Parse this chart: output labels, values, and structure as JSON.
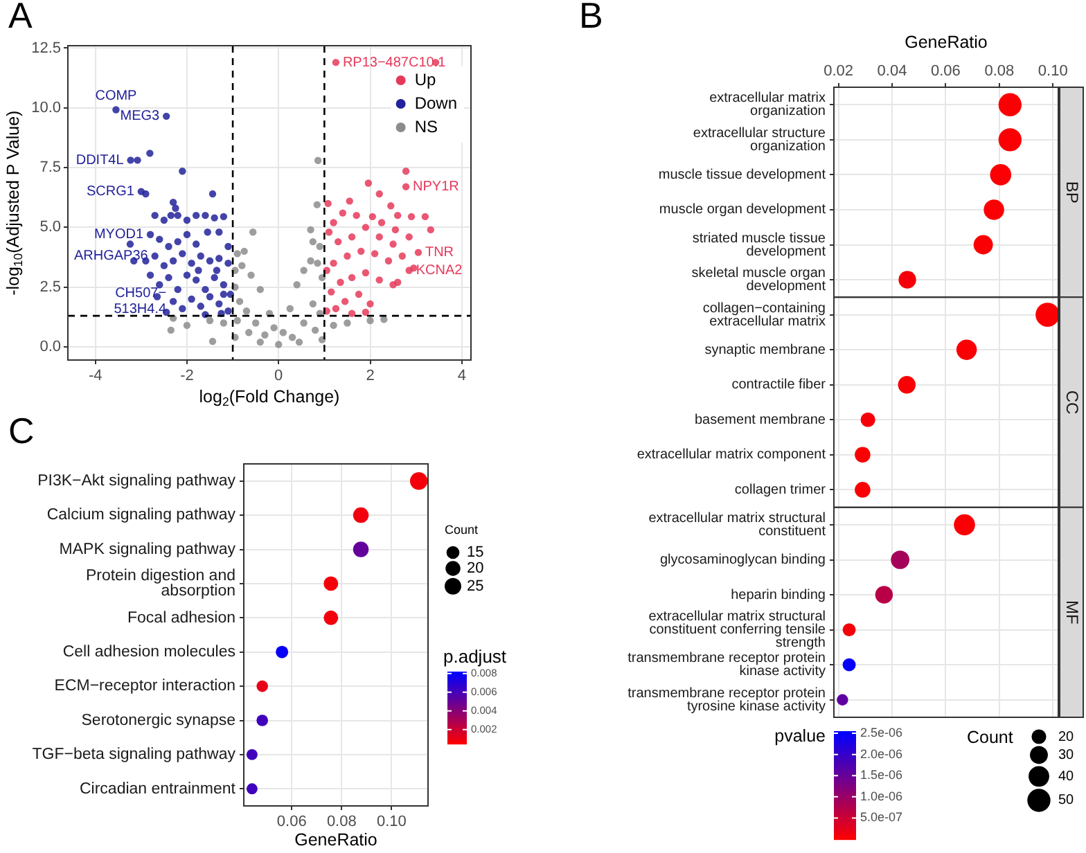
{
  "chart_data": [
    {
      "type": "scatter",
      "annotations": [
        "A",
        {
          "text": "COMP",
          "x": -3.55,
          "y": 9.92
        },
        {
          "text": "MEG3",
          "x": -2.45,
          "y": 9.65
        },
        {
          "text": "DDIT4L",
          "x": -3.23,
          "y": 7.81
        },
        {
          "text": "SCRG1",
          "x": -3.0,
          "y": 6.5
        },
        {
          "text": "MYOD1",
          "x": -2.8,
          "y": 4.7
        },
        {
          "text": "ARHGAP36",
          "x": -2.7,
          "y": 3.8
        },
        {
          "text": "CH507−513H4.4",
          "x": -2.3,
          "y": 1.9
        },
        {
          "text": "RP13−487C10.1",
          "x": 1.25,
          "y": 11.9
        },
        {
          "text": "NPY1R",
          "x": 2.78,
          "y": 6.7
        },
        {
          "text": "TNR",
          "x": 3.05,
          "y": 3.95
        },
        {
          "text": "KCNA2",
          "x": 2.85,
          "y": 3.2
        }
      ],
      "xlabel": "log$_{2}$(Fold Change)",
      "ylabel": "-log$_{10}$(Adjusted P Value)",
      "xlim": [
        -4.6,
        4.2
      ],
      "ylim": [
        -0.55,
        12.6
      ],
      "xticks": [
        -4,
        -2,
        0,
        2,
        4
      ],
      "yticks": [
        {
          "value": 0,
          "label": "0.0"
        },
        2.5,
        {
          "value": 5,
          "label": "5.0"
        },
        7.5,
        {
          "value": 10,
          "label": "10.0"
        },
        12.5
      ],
      "grid": true,
      "legend": "top right",
      "marker": "circle",
      "ref_lines": [
        {
          "axis": "x",
          "value": -1,
          "color": "#000000",
          "line_style": "dashed"
        },
        {
          "axis": "x",
          "value": 1,
          "color": "#000000",
          "line_style": "dashed"
        },
        {
          "axis": "y",
          "value": 1.3,
          "color": "#000000",
          "line_style": "dashed"
        }
      ],
      "series": [
        {
          "name": "Up",
          "color": "#e6395a",
          "x": [
            1.25,
            3.43,
            3.2,
            2.9,
            3.32,
            3.05,
            2.85,
            2.78,
            2.78,
            1.96,
            1.08,
            2.2,
            1.55,
            2.45,
            1.4,
            1.7,
            2.05,
            2.6,
            1.2,
            1.9,
            2.25,
            2.55,
            2.85,
            2.5,
            2.2,
            1.6,
            1.3,
            1.1,
            2.7,
            2.95,
            2.4,
            2.1,
            1.8,
            1.5,
            1.2,
            1.05,
            2.5,
            2.6,
            2.2,
            1.9,
            1.6,
            1.35,
            1.15,
            1.75,
            2.0,
            1.45,
            1.25,
            1.05,
            1.9,
            1.6
          ],
          "values": [
            11.9,
            11.9,
            5.45,
            5.45,
            4.9,
            3.95,
            3.2,
            7.35,
            6.7,
            6.85,
            6.0,
            6.4,
            6.1,
            5.9,
            5.6,
            5.5,
            5.45,
            5.5,
            5.2,
            5.0,
            5.2,
            4.9,
            4.6,
            4.3,
            4.6,
            4.6,
            4.4,
            4.8,
            3.8,
            3.3,
            3.6,
            3.9,
            4.0,
            3.8,
            3.5,
            3.2,
            2.6,
            2.7,
            2.8,
            3.1,
            2.9,
            2.7,
            2.3,
            2.2,
            1.8,
            1.9,
            1.6,
            1.5,
            1.45,
            1.4
          ]
        },
        {
          "name": "Down",
          "color": "#22229a",
          "x": [
            -3.55,
            -2.45,
            -3.23,
            -3.08,
            -2.81,
            -2.1,
            -3.0,
            -2.9,
            -1.44,
            -3.24,
            -3.16,
            -2.8,
            -2.7,
            -2.5,
            -2.35,
            -2.2,
            -2.0,
            -1.8,
            -1.6,
            -1.4,
            -1.2,
            -2.3,
            -2.25,
            -1.55,
            -1.3,
            -2.8,
            -2.6,
            -2.4,
            -2.2,
            -2.0,
            -1.8,
            -1.1,
            -2.9,
            -2.7,
            -2.5,
            -2.3,
            -2.1,
            -1.9,
            -1.7,
            -1.5,
            -1.3,
            -1.1,
            -2.6,
            -2.4,
            -2.2,
            -2.0,
            -1.8,
            -1.6,
            -1.4,
            -1.2,
            -1.05,
            -2.3,
            -2.1,
            -1.9,
            -1.7,
            -1.5,
            -1.3,
            -1.1,
            -2.45,
            -1.6,
            -1.25,
            -2.65,
            -1.75,
            -1.35,
            -1.2
          ],
          "values": [
            9.92,
            9.65,
            7.81,
            7.81,
            8.1,
            7.35,
            6.5,
            6.4,
            6.4,
            4.3,
            3.6,
            3.0,
            5.5,
            5.3,
            5.5,
            5.5,
            5.3,
            5.5,
            5.5,
            5.4,
            5.45,
            6.05,
            5.8,
            4.8,
            4.8,
            4.7,
            4.5,
            4.2,
            4.4,
            4.7,
            4.3,
            4.2,
            3.6,
            3.8,
            3.4,
            3.6,
            3.9,
            3.5,
            3.8,
            3.6,
            3.7,
            3.5,
            2.6,
            2.9,
            2.4,
            3.0,
            2.8,
            2.4,
            2.9,
            2.6,
            2.2,
            1.9,
            1.6,
            2.0,
            1.7,
            2.1,
            1.8,
            1.5,
            1.45,
            1.35,
            1.4,
            2.1,
            3.2,
            3.2,
            2.2
          ]
        },
        {
          "name": "NS",
          "color": "#8c8c8c",
          "x": [
            0.86,
            0.84,
            -0.56,
            0.7,
            0.75,
            -0.75,
            -0.9,
            0.9,
            -0.95,
            -0.8,
            -0.6,
            -0.4,
            -0.2,
            -0.1,
            0,
            0.1,
            0.25,
            0.4,
            0.55,
            0.7,
            0.85,
            0.95,
            -0.95,
            -0.85,
            -0.7,
            -0.5,
            -0.3,
            0.3,
            0.55,
            0.75,
            0.9,
            -0.9,
            -0.65,
            -0.4,
            0.45,
            0.8,
            -1.5,
            -2.0,
            -2.35,
            -2.3,
            -1.2,
            -1.44,
            1.5,
            2.0,
            2.3,
            1.2,
            0.95,
            -0.95
          ],
          "values": [
            7.8,
            5.95,
            4.8,
            4.9,
            4.4,
            4.0,
            3.9,
            4.2,
            3.2,
            3.4,
            3.0,
            2.4,
            1.4,
            0.8,
            0.1,
            0.6,
            1.6,
            2.6,
            3.2,
            3.6,
            3.5,
            2.9,
            2.5,
            1.9,
            1.5,
            1.0,
            0.5,
            0.4,
            1.0,
            1.8,
            1.4,
            1.1,
            0.6,
            0.2,
            0.2,
            0.7,
            1.1,
            0.9,
            0.7,
            1.2,
            1.0,
            0.23,
            1.0,
            1.1,
            1.15,
            0.9,
            0.3,
            0.4
          ]
        }
      ]
    },
    {
      "type": "bubble",
      "annotations": [
        "B",
        "BP",
        "CC",
        "MF"
      ],
      "xlabel": "GeneRatio",
      "orientation": "horizontal",
      "marker": "circle",
      "grid": true,
      "xlim": [
        0.0183,
        0.102
      ],
      "xticks": [
        0.02,
        0.04,
        0.06,
        0.08,
        {
          "value": 0.1,
          "label": "0.10"
        }
      ],
      "clabel": "pvalue",
      "legend_title": "Count",
      "clim": [
        0,
        2.55e-06
      ],
      "cticks": [
        {
          "value": 5e-07,
          "label": "5.0e-07"
        },
        {
          "value": 1e-06,
          "label": "1.0e-06"
        },
        {
          "value": 1.5e-06,
          "label": "1.5e-06"
        },
        {
          "value": 2e-06,
          "label": "2.0e-06"
        },
        {
          "value": 2.5e-06,
          "label": "2.5e-06"
        }
      ],
      "size_legend": [
        20,
        30,
        40,
        50
      ],
      "categories": [
        "extracellular matrix organization",
        "extracellular structure organization",
        "muscle tissue development",
        "muscle organ development",
        "striated muscle tissue development",
        "skeletal muscle organ development",
        "collagen−containing extracellular matrix",
        "synaptic membrane",
        "contractile fiber",
        "basement membrane",
        "extracellular matrix component",
        "collagen trimer",
        "extracellular matrix structural constituent",
        "glycosaminoglycan binding",
        "heparin binding",
        "extracellular matrix structural constituent conferring tensile strength",
        "transmembrane receptor protein kinase activity",
        "transmembrane receptor protein tyrosine kinase activity"
      ],
      "values": [
        0.084,
        0.084,
        0.0805,
        0.078,
        0.074,
        0.0457,
        0.098,
        0.0678,
        0.0455,
        0.031,
        0.029,
        0.029,
        0.067,
        0.043,
        0.037,
        0.024,
        0.024,
        0.0215
      ],
      "sizes": [
        50,
        50,
        42,
        39,
        35,
        29,
        54,
        39,
        29,
        20,
        23,
        23,
        42,
        32,
        29,
        16,
        16,
        12
      ],
      "cvalues": [
        5e-08,
        5e-08,
        5e-08,
        5e-08,
        5e-08,
        1e-07,
        5e-08,
        5e-08,
        5e-08,
        1e-07,
        5e-08,
        5e-08,
        5e-08,
        9e-07,
        7e-07,
        1e-07,
        2.5e-06,
        1.6e-06
      ]
    },
    {
      "type": "bubble",
      "annotations": [
        "C"
      ],
      "xlabel": "GeneRatio",
      "orientation": "horizontal",
      "marker": "circle",
      "grid": true,
      "clabel": "p.adjust",
      "legend_title": "Count",
      "categories": [
        "PI3K−Akt signaling pathway",
        "Calcium signaling pathway",
        "MAPK signaling pathway",
        "Protein digestion and absorption",
        "Focal adhesion",
        "Cell adhesion molecules",
        "ECM−receptor interaction",
        "Serotonergic synapse",
        "TGF−beta signaling pathway",
        "Circadian entrainment"
      ],
      "values": [
        0.1109,
        0.0877,
        0.0877,
        0.0757,
        0.0757,
        0.0561,
        0.0482,
        0.0482,
        0.0441,
        0.0441
      ],
      "sizes": [
        28,
        22,
        22,
        19,
        19,
        14,
        12,
        12,
        11,
        11
      ],
      "cvalues": [
        0.0008,
        0.0009,
        0.0052,
        0.0008,
        0.0009,
        0.008,
        0.0012,
        0.0062,
        0.0062,
        0.0063
      ],
      "xlim": [
        0.0408,
        0.1146
      ],
      "xticks": [
        0.06,
        0.08,
        {
          "value": 0.1,
          "label": "0.10"
        }
      ],
      "clim": [
        0.0005,
        0.0082
      ],
      "cticks": [
        0.002,
        0.004,
        0.006,
        0.008
      ],
      "size_legend": [
        15,
        20,
        25
      ]
    }
  ]
}
